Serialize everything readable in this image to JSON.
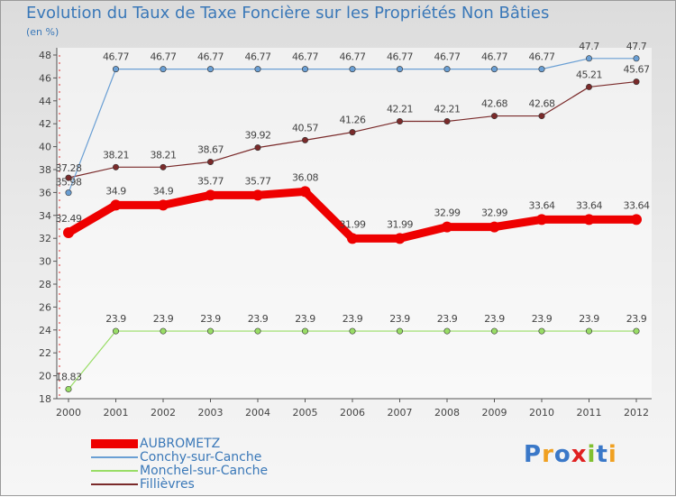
{
  "header": {
    "title": "Evolution du Taux de Taxe Foncière sur les Propriétés Non Bâties",
    "unit": "(en %)"
  },
  "logo": {
    "text": "Proxiti",
    "letters": [
      "P",
      "r",
      "o",
      "x",
      "i",
      "t",
      "i"
    ]
  },
  "chart_data": {
    "type": "line",
    "title": "Evolution du Taux de Taxe Foncière sur les Propriétés Non Bâties",
    "ylabel": "(en %)",
    "xlabel": "",
    "ylim": [
      18,
      48
    ],
    "yticks": [
      18,
      20,
      22,
      24,
      26,
      28,
      30,
      32,
      34,
      36,
      38,
      40,
      42,
      44,
      46,
      48
    ],
    "categories": [
      "2000",
      "2001",
      "2002",
      "2003",
      "2004",
      "2005",
      "2006",
      "2007",
      "2008",
      "2009",
      "2010",
      "2011",
      "2012"
    ],
    "legend_position": "bottom-left",
    "grid": false,
    "series": [
      {
        "name": "AUBROMETZ",
        "color": "#ee0000",
        "values": [
          32.49,
          34.9,
          34.9,
          35.77,
          35.77,
          36.08,
          31.99,
          31.99,
          32.99,
          32.99,
          33.64,
          33.64,
          33.64
        ],
        "labels": [
          "32.49",
          "34.9",
          "34.9",
          "35.77",
          "35.77",
          "36.08",
          "31.99",
          "31.99",
          "32.99",
          "32.99",
          "33.64",
          "33.64",
          "33.64"
        ]
      },
      {
        "name": "Conchy-sur-Canche",
        "color": "#6a9fd4",
        "values": [
          35.98,
          46.77,
          46.77,
          46.77,
          46.77,
          46.77,
          46.77,
          46.77,
          46.77,
          46.77,
          46.77,
          47.7,
          47.7
        ],
        "labels": [
          "35.98",
          "46.77",
          "46.77",
          "46.77",
          "46.77",
          "46.77",
          "46.77",
          "46.77",
          "46.77",
          "46.77",
          "46.77",
          "47.7",
          "47.7"
        ]
      },
      {
        "name": "Monchel-sur-Canche",
        "color": "#99dd66",
        "values": [
          18.83,
          23.9,
          23.9,
          23.9,
          23.9,
          23.9,
          23.9,
          23.9,
          23.9,
          23.9,
          23.9,
          23.9,
          23.9
        ],
        "labels": [
          "18.83",
          "23.9",
          "23.9",
          "23.9",
          "23.9",
          "23.9",
          "23.9",
          "23.9",
          "23.9",
          "23.9",
          "23.9",
          "23.9",
          "23.9"
        ]
      },
      {
        "name": "Fillièvres",
        "color": "#7a2a2a",
        "values": [
          37.28,
          38.21,
          38.21,
          38.67,
          39.92,
          40.57,
          41.26,
          42.21,
          42.21,
          42.68,
          42.68,
          45.21,
          45.67
        ],
        "labels": [
          "37.28",
          "38.21",
          "38.21",
          "38.67",
          "39.92",
          "40.57",
          "41.26",
          "42.21",
          "42.21",
          "42.68",
          "42.68",
          "45.21",
          "45.67"
        ]
      }
    ]
  }
}
